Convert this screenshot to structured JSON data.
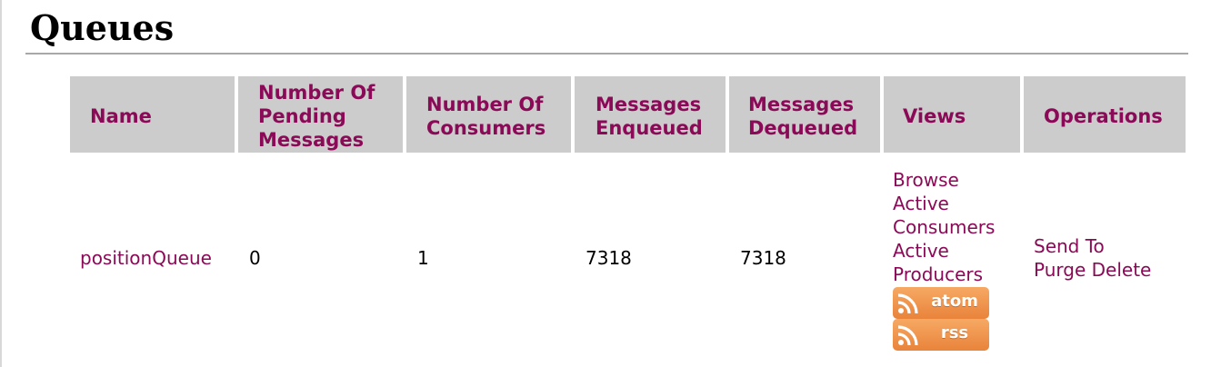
{
  "page": {
    "title": "Queues"
  },
  "table": {
    "headers": {
      "name": "Name",
      "pending": "Number Of Pending Messages",
      "consumers": "Number Of Consumers",
      "enqueued": "Messages Enqueued",
      "dequeued": "Messages Dequeued",
      "views": "Views",
      "operations": "Operations"
    },
    "rows": [
      {
        "name": "positionQueue",
        "pending": "0",
        "consumers": "1",
        "enqueued": "7318",
        "dequeued": "7318",
        "views": {
          "browse": "Browse",
          "active_consumers": "Active Consumers",
          "active_producers": "Active Producers",
          "atom_feed": "atom",
          "rss_feed": "rss"
        },
        "operations": {
          "send_to": "Send To",
          "purge": "Purge",
          "delete": "Delete"
        }
      }
    ]
  },
  "colors": {
    "link": "#8b0a57",
    "header_bg": "#cccccc",
    "feed_button": "#ee8d45"
  },
  "icons": {
    "feed": "rss-feed-icon"
  }
}
